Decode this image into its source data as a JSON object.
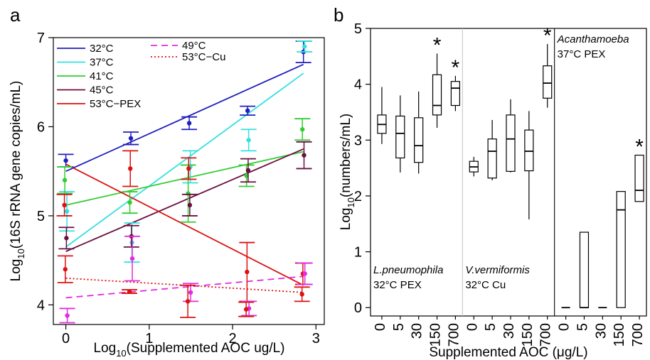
{
  "chart_data": [
    {
      "panel": "a",
      "type": "scatter",
      "xlabel_main": "Log",
      "xlabel_sub": "10",
      "xlabel_rest": "(Supplemented AOC ug/L)",
      "ylabel_main": "Log",
      "ylabel_sub": "10",
      "ylabel_rest": "(16S rRNA gene copies/mL)",
      "xlim": [
        -0.15,
        3.1
      ],
      "ylim": [
        3.78,
        7.0
      ],
      "xticks": [
        0,
        1,
        2,
        3
      ],
      "yticks": [
        4,
        5,
        6,
        7
      ],
      "x": [
        0,
        0.78,
        1.48,
        2.18,
        2.85
      ],
      "legend_position": "top-left",
      "series": [
        {
          "name": "32°C",
          "color": "#1f1fbf",
          "dash": "solid",
          "means": [
            5.62,
            5.87,
            6.04,
            6.18,
            6.84
          ],
          "err": [
            0.07,
            0.07,
            0.07,
            0.05,
            0.12
          ],
          "fit": [
            5.5,
            6.7
          ]
        },
        {
          "name": "37°C",
          "color": "#33e0e0",
          "dash": "solid",
          "means": [
            5.05,
            4.7,
            5.55,
            5.85,
            6.9
          ],
          "err": [
            0.22,
            0.22,
            0.18,
            0.12,
            0.06
          ],
          "fit": [
            4.65,
            6.6
          ]
        },
        {
          "name": "41°C",
          "color": "#33cc33",
          "dash": "solid",
          "means": [
            5.4,
            5.15,
            5.25,
            5.45,
            5.97
          ],
          "err": [
            0.15,
            0.12,
            0.32,
            0.12,
            0.12
          ],
          "fit": [
            5.12,
            5.72
          ]
        },
        {
          "name": "45°C",
          "color": "#6b0f3f",
          "dash": "solid",
          "means": [
            4.75,
            4.77,
            5.12,
            5.51,
            5.68
          ],
          "err": [
            0.12,
            0.12,
            0.12,
            0.13,
            0.15
          ],
          "fit": [
            4.6,
            5.75
          ]
        },
        {
          "name": "53°C−PEX",
          "color": "#dd1111",
          "dash": "solid",
          "means": [
            4.4,
            5.53,
            5.53,
            4.37,
            4.35
          ],
          "err": [
            0.15,
            0.2,
            0.12,
            0.33,
            0.12
          ],
          "fit": [
            5.58,
            4.22
          ]
        },
        {
          "name": "49°C",
          "color": "#e02be0",
          "dash": "dashed",
          "means": [
            3.88,
            4.52,
            4.14,
            3.96,
            4.35
          ],
          "err": [
            0.08,
            0.25,
            0.1,
            0.08,
            0.12
          ],
          "fit": [
            4.08,
            4.32
          ]
        },
        {
          "name": "53°C−Cu",
          "color": "#dd1111",
          "dash": "dotted",
          "means": [
            5.12,
            4.15,
            4.04,
            3.95,
            4.12
          ],
          "err": [
            0.12,
            0.02,
            0.18,
            0.08,
            0.08
          ],
          "fit": [
            4.3,
            4.14
          ]
        }
      ]
    },
    {
      "panel": "b",
      "type": "boxplot",
      "ylabel_main": "Log",
      "ylabel_sub": "10",
      "ylabel_rest": "(numbers/mL)",
      "xlabel": "Supplemented AOC (μg/L)",
      "ylim": [
        -0.15,
        5.0
      ],
      "yticks": [
        0,
        1,
        2,
        3,
        4,
        5
      ],
      "groups": [
        {
          "label_line1": "L.pneumophila",
          "label_line2": "32°C PEX",
          "label_position": "bottom",
          "categories": [
            "0",
            "5",
            "30",
            "150",
            "700"
          ],
          "boxes": [
            {
              "lo": 2.93,
              "q1": 3.12,
              "med": 3.28,
              "q3": 3.45,
              "hi": 3.95,
              "sig": false
            },
            {
              "lo": 2.42,
              "q1": 2.68,
              "med": 3.12,
              "q3": 3.43,
              "hi": 3.8,
              "sig": false
            },
            {
              "lo": 2.4,
              "q1": 2.6,
              "med": 2.9,
              "q3": 3.4,
              "hi": 3.87,
              "sig": false
            },
            {
              "lo": 3.22,
              "q1": 3.45,
              "med": 3.62,
              "q3": 4.17,
              "hi": 4.55,
              "sig": true
            },
            {
              "lo": 3.52,
              "q1": 3.62,
              "med": 3.93,
              "q3": 4.05,
              "hi": 4.15,
              "sig": true
            }
          ]
        },
        {
          "label_line1": "V.vermiformis",
          "label_line2": "32°C Cu",
          "label_position": "bottom",
          "categories": [
            "0",
            "5",
            "30",
            "150",
            "700"
          ],
          "boxes": [
            {
              "lo": 2.35,
              "q1": 2.43,
              "med": 2.52,
              "q3": 2.62,
              "hi": 2.7,
              "sig": false
            },
            {
              "lo": 2.28,
              "q1": 2.32,
              "med": 2.8,
              "q3": 3.02,
              "hi": 3.36,
              "sig": false
            },
            {
              "lo": 2.42,
              "q1": 2.44,
              "med": 3.02,
              "q3": 3.45,
              "hi": 3.73,
              "sig": false
            },
            {
              "lo": 1.58,
              "q1": 2.45,
              "med": 2.8,
              "q3": 3.18,
              "hi": 3.52,
              "sig": false
            },
            {
              "lo": 3.58,
              "q1": 3.75,
              "med": 4.02,
              "q3": 4.33,
              "hi": 4.72,
              "sig": true
            }
          ]
        },
        {
          "label_line1": "Acanthamoeba",
          "label_line2": "37°C PEX",
          "label_position": "top",
          "categories": [
            "0",
            "5",
            "30",
            "150",
            "700"
          ],
          "boxes": [
            {
              "lo": 0.0,
              "q1": 0.0,
              "med": 0.0,
              "q3": 0.0,
              "hi": 0.0,
              "sig": false
            },
            {
              "lo": 0.0,
              "q1": 0.0,
              "med": 0.0,
              "q3": 1.35,
              "hi": 1.35,
              "sig": false
            },
            {
              "lo": 0.0,
              "q1": 0.0,
              "med": 0.0,
              "q3": 0.0,
              "hi": 0.0,
              "sig": false
            },
            {
              "lo": 0.0,
              "q1": 0.0,
              "med": 1.75,
              "q3": 2.08,
              "hi": 2.08,
              "sig": false
            },
            {
              "lo": 1.9,
              "q1": 1.9,
              "med": 2.1,
              "q3": 2.73,
              "hi": 2.73,
              "sig": true
            }
          ]
        }
      ]
    }
  ],
  "panel_labels": {
    "a": "a",
    "b": "b"
  },
  "sig_marker": "*"
}
